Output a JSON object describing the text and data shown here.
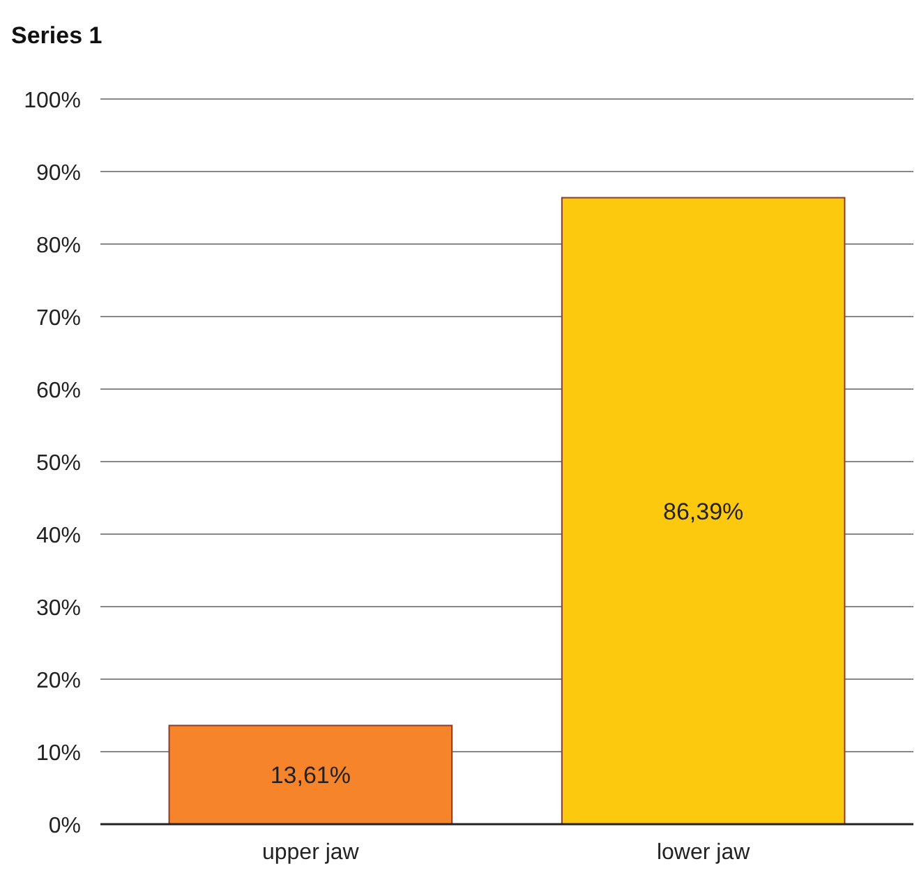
{
  "chart_data": {
    "type": "bar",
    "title": "Series 1",
    "categories": [
      "upper jaw",
      "lower jaw"
    ],
    "values": [
      13.61,
      86.39
    ],
    "colors": [
      "#f5842a",
      "#fdc90f"
    ],
    "value_labels": [
      "13,61%",
      "86,39%"
    ],
    "ylim": [
      0,
      100
    ],
    "yticks": [
      {
        "value": 0,
        "label": "0%"
      },
      {
        "value": 10,
        "label": "10%"
      },
      {
        "value": 20,
        "label": "20%"
      },
      {
        "value": 30,
        "label": "30%"
      },
      {
        "value": 40,
        "label": "40%"
      },
      {
        "value": 50,
        "label": "50%"
      },
      {
        "value": 60,
        "label": "60%"
      },
      {
        "value": 70,
        "label": "70%"
      },
      {
        "value": 80,
        "label": "80%"
      },
      {
        "value": 90,
        "label": "90%"
      },
      {
        "value": 100,
        "label": "100%"
      }
    ],
    "grid": "y"
  }
}
